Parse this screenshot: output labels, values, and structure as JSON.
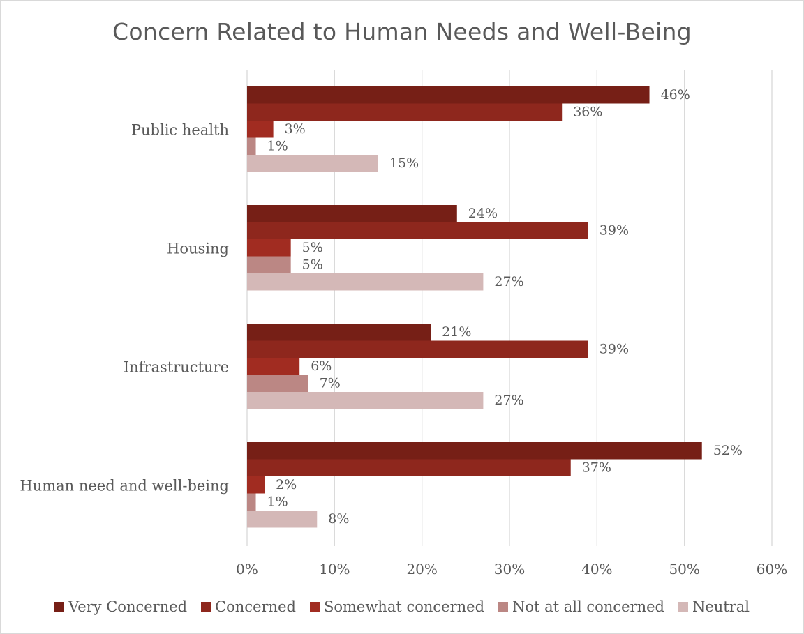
{
  "chart_data": {
    "type": "bar",
    "orientation": "horizontal",
    "title": "Concern Related to Human Needs and Well-Being",
    "categories": [
      "Public health",
      "Housing",
      "Infrastructure",
      "Human need and well-being"
    ],
    "series": [
      {
        "name": "Very Concerned",
        "color": "#761f16",
        "values": [
          46,
          24,
          21,
          52
        ],
        "labels": [
          "46%",
          "24%",
          "21%",
          "52%"
        ]
      },
      {
        "name": "Concerned",
        "color": "#8e271d",
        "values": [
          36,
          39,
          39,
          37
        ],
        "labels": [
          "36%",
          "39%",
          "39%",
          "37%"
        ]
      },
      {
        "name": "Somewhat concerned",
        "color": "#a12c21",
        "values": [
          3,
          5,
          6,
          2
        ],
        "labels": [
          "3%",
          "5%",
          "6%",
          "2%"
        ]
      },
      {
        "name": "Not at all concerned",
        "color": "#bb8784",
        "values": [
          1,
          5,
          7,
          1
        ],
        "labels": [
          "1%",
          "5%",
          "7%",
          "1%"
        ]
      },
      {
        "name": "Neutral",
        "color": "#d4b8b7",
        "values": [
          15,
          27,
          27,
          8
        ],
        "labels": [
          "15%",
          "27%",
          "27%",
          "8%"
        ]
      }
    ],
    "xlim": [
      0,
      60
    ],
    "xticks": [
      0,
      10,
      20,
      30,
      40,
      50,
      60
    ],
    "xtick_labels": [
      "0%",
      "10%",
      "20%",
      "30%",
      "40%",
      "50%",
      "60%"
    ],
    "grid": true,
    "legend_position": "bottom",
    "gridline_color": "#d9d9d9",
    "text_color": "#595959"
  }
}
